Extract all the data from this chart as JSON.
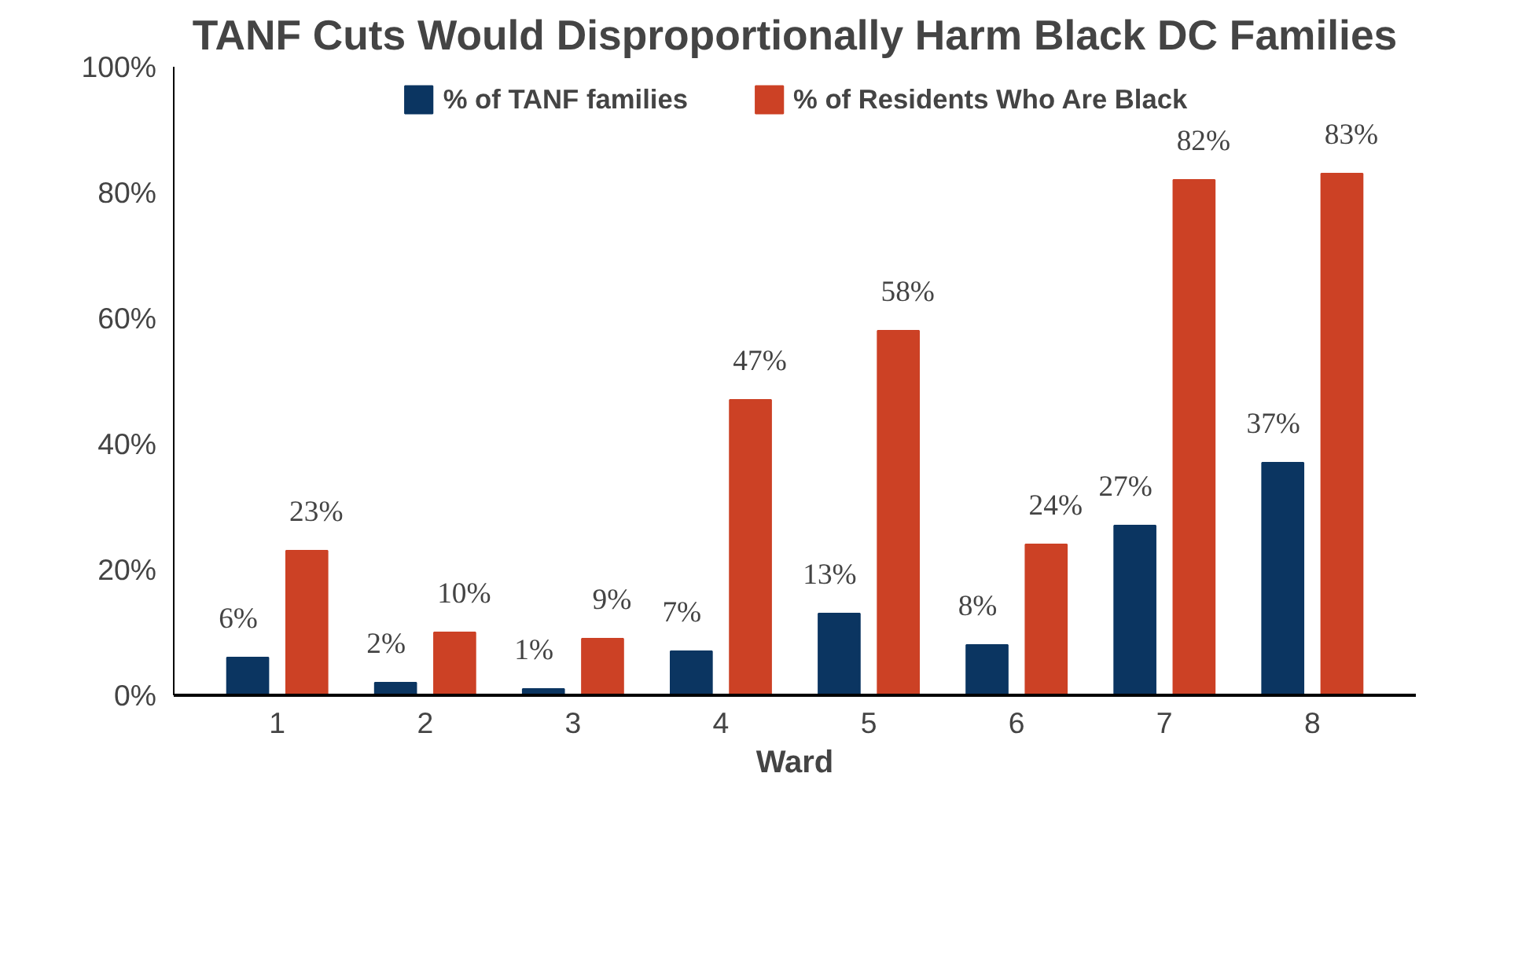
{
  "chart_data": {
    "type": "bar",
    "title": "TANF Cuts Would Disproportionally Harm Black DC Families",
    "xlabel": "Ward",
    "categories": [
      "1",
      "2",
      "3",
      "4",
      "5",
      "6",
      "7",
      "8"
    ],
    "series": [
      {
        "name": "% of TANF families",
        "color": "#0b3561",
        "values": [
          6,
          2,
          1,
          7,
          13,
          8,
          27,
          37
        ]
      },
      {
        "name": "% of Residents Who Are Black",
        "color": "#cc4125",
        "values": [
          23,
          10,
          9,
          47,
          58,
          24,
          82,
          83
        ]
      }
    ],
    "ylim": [
      0,
      100
    ],
    "yticks": [
      {
        "value": 0,
        "label": "0%"
      },
      {
        "value": 20,
        "label": "20%"
      },
      {
        "value": 40,
        "label": "40%"
      },
      {
        "value": 60,
        "label": "60%"
      },
      {
        "value": 80,
        "label": "80%"
      },
      {
        "value": 100,
        "label": "100%"
      }
    ],
    "value_labels": [
      [
        "6%",
        "2%",
        "1%",
        "7%",
        "13%",
        "8%",
        "27%",
        "37%"
      ],
      [
        "23%",
        "10%",
        "9%",
        "47%",
        "58%",
        "24%",
        "82%",
        "83%"
      ]
    ],
    "grid": false,
    "legend": "top"
  }
}
